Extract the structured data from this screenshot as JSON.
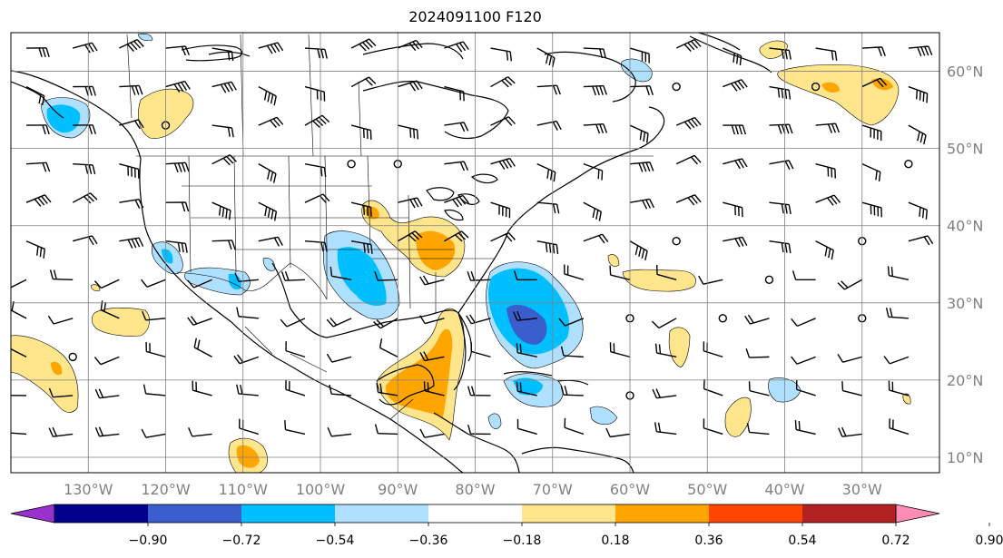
{
  "title": "2024091100 F120",
  "lat_labels": [
    {
      "lat": 60,
      "text": "60°N"
    },
    {
      "lat": 50,
      "text": "50°N"
    },
    {
      "lat": 40,
      "text": "40°N"
    },
    {
      "lat": 30,
      "text": "30°N"
    },
    {
      "lat": 20,
      "text": "20°N"
    },
    {
      "lat": 10,
      "text": "10°N"
    }
  ],
  "lon_labels": [
    {
      "lon": -130,
      "text": "130°W"
    },
    {
      "lon": -120,
      "text": "120°W"
    },
    {
      "lon": -110,
      "text": "110°W"
    },
    {
      "lon": -100,
      "text": "100°W"
    },
    {
      "lon": -90,
      "text": "90°W"
    },
    {
      "lon": -80,
      "text": "80°W"
    },
    {
      "lon": -70,
      "text": "70°W"
    },
    {
      "lon": -60,
      "text": "60°W"
    },
    {
      "lon": -50,
      "text": "50°W"
    },
    {
      "lon": -40,
      "text": "40°W"
    },
    {
      "lon": -30,
      "text": "30°W"
    }
  ],
  "extent": {
    "lon_min": -140,
    "lon_max": -20,
    "lat_min": 8,
    "lat_max": 65
  },
  "colorbar": {
    "colors": [
      "#9932cc",
      "#00008b",
      "#3a5fcd",
      "#00bfff",
      "#b0e0ff",
      "#ffffff",
      "#ffe68c",
      "#ffa500",
      "#ff4500",
      "#b22222",
      "#ff8cb4"
    ],
    "ticks": [
      "−0.90",
      "−0.72",
      "−0.54",
      "−0.36",
      "−0.18",
      "0.18",
      "0.36",
      "0.54",
      "0.72",
      "0.90"
    ]
  },
  "anomaly_regions": [
    {
      "name": "se-coast-negative",
      "level": -0.54,
      "color": "#3a5fcd",
      "center": [
        -72.5,
        28.5
      ]
    },
    {
      "name": "se-coast-negative-outer",
      "level": -0.36,
      "color": "#00bfff",
      "center": [
        -73,
        29
      ]
    },
    {
      "name": "central-us-negative",
      "level": -0.36,
      "color": "#00bfff",
      "center": [
        -92,
        33
      ]
    },
    {
      "name": "gulf-positive",
      "level": 0.54,
      "color": "#ffa500",
      "center": [
        -86,
        22
      ]
    },
    {
      "name": "ohio-valley-positive",
      "level": 0.54,
      "color": "#ffa500",
      "center": [
        -84,
        38
      ]
    },
    {
      "name": "north-atlantic-positive",
      "level": 0.36,
      "color": "#ffe68c",
      "center": [
        -31,
        59
      ]
    },
    {
      "name": "east-pacific-positive",
      "level": 0.54,
      "color": "#ffa500",
      "center": [
        -111,
        12
      ]
    },
    {
      "name": "west-pacific-positive",
      "level": 0.54,
      "color": "#ffa500",
      "center": [
        -134,
        20
      ]
    }
  ]
}
